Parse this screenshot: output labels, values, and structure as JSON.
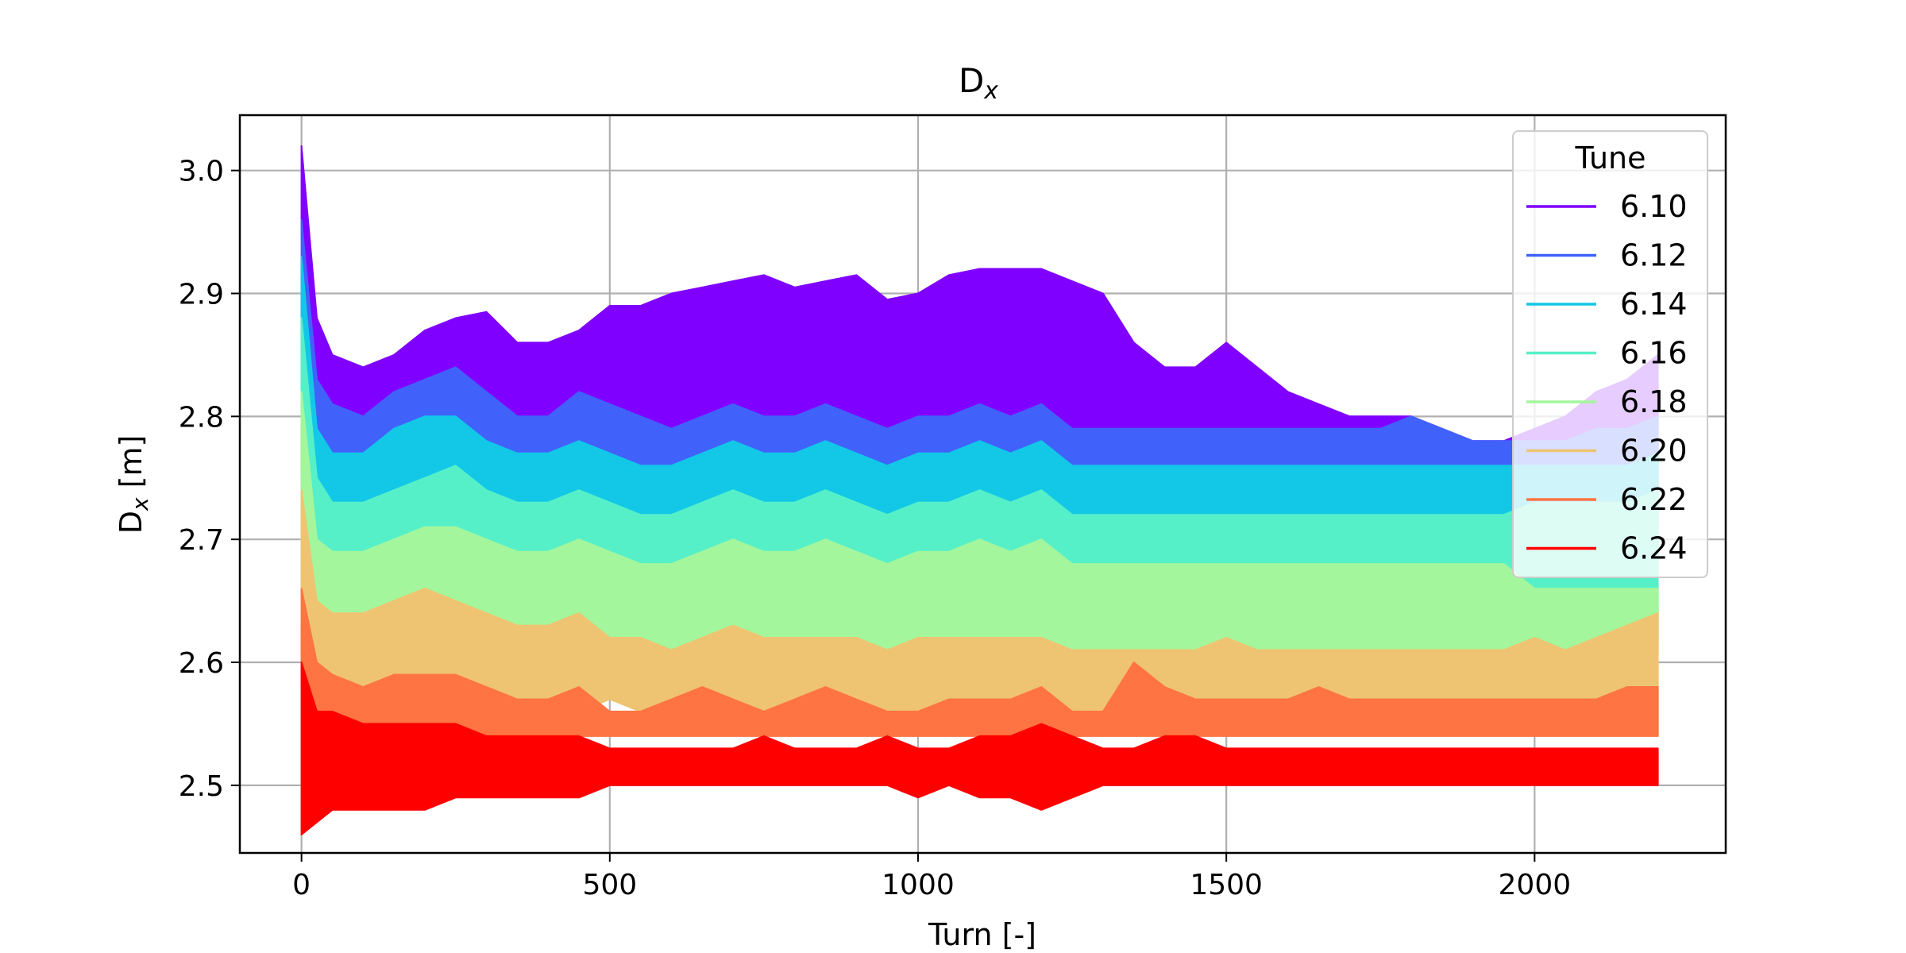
{
  "chart_data": {
    "type": "line",
    "title_main": "D",
    "title_sub": "x",
    "xlabel": "Turn [-]",
    "ylabel_main": "D",
    "ylabel_sub": "x",
    "ylabel_unit": " [m]",
    "xlim": [
      -100,
      2310
    ],
    "ylim": [
      2.445,
      3.045
    ],
    "xticks": [
      0,
      500,
      1000,
      1500,
      2000
    ],
    "xtick_labels": [
      "0",
      "500",
      "1000",
      "1500",
      "2000"
    ],
    "yticks": [
      2.5,
      2.6,
      2.7,
      2.8,
      2.9,
      3.0
    ],
    "ytick_labels": [
      "2.5",
      "2.6",
      "2.7",
      "2.8",
      "2.9",
      "3.0"
    ],
    "grid": true,
    "legend_title": "Tune",
    "legend_position": "top-right",
    "x": [
      0,
      25,
      50,
      100,
      150,
      200,
      250,
      300,
      350,
      400,
      450,
      500,
      550,
      600,
      650,
      700,
      750,
      800,
      850,
      900,
      950,
      1000,
      1050,
      1100,
      1150,
      1200,
      1250,
      1300,
      1350,
      1400,
      1450,
      1500,
      1550,
      1600,
      1650,
      1700,
      1750,
      1800,
      1850,
      1900,
      1950,
      2000,
      2050,
      2100,
      2150,
      2200
    ],
    "series": [
      {
        "name": "6.10",
        "color": "#8000ff",
        "upper": [
          3.02,
          2.88,
          2.85,
          2.84,
          2.85,
          2.87,
          2.88,
          2.885,
          2.86,
          2.86,
          2.87,
          2.89,
          2.89,
          2.9,
          2.905,
          2.91,
          2.915,
          2.905,
          2.91,
          2.915,
          2.895,
          2.9,
          2.915,
          2.92,
          2.92,
          2.92,
          2.91,
          2.9,
          2.86,
          2.84,
          2.84,
          2.86,
          2.84,
          2.82,
          2.81,
          2.8,
          2.8,
          2.8,
          2.79,
          2.78,
          2.78,
          2.79,
          2.8,
          2.82,
          2.83,
          2.85
        ],
        "lower": [
          2.95,
          2.8,
          2.79,
          2.79,
          2.79,
          2.79,
          2.8,
          2.79,
          2.78,
          2.77,
          2.77,
          2.78,
          2.78,
          2.77,
          2.77,
          2.78,
          2.77,
          2.77,
          2.76,
          2.76,
          2.77,
          2.76,
          2.76,
          2.77,
          2.77,
          2.77,
          2.76,
          2.76,
          2.75,
          2.75,
          2.75,
          2.75,
          2.75,
          2.75,
          2.75,
          2.75,
          2.74,
          2.74,
          2.74,
          2.74,
          2.74,
          2.74,
          2.74,
          2.74,
          2.74,
          2.74
        ]
      },
      {
        "name": "6.12",
        "color": "#4062fa",
        "upper": [
          2.96,
          2.83,
          2.81,
          2.8,
          2.82,
          2.83,
          2.84,
          2.82,
          2.8,
          2.8,
          2.82,
          2.81,
          2.8,
          2.79,
          2.8,
          2.81,
          2.8,
          2.8,
          2.81,
          2.8,
          2.79,
          2.8,
          2.8,
          2.81,
          2.8,
          2.81,
          2.79,
          2.79,
          2.79,
          2.79,
          2.79,
          2.79,
          2.79,
          2.79,
          2.79,
          2.79,
          2.79,
          2.8,
          2.79,
          2.78,
          2.78,
          2.78,
          2.78,
          2.79,
          2.79,
          2.8
        ],
        "lower": [
          2.85,
          2.75,
          2.74,
          2.73,
          2.74,
          2.74,
          2.74,
          2.73,
          2.73,
          2.72,
          2.72,
          2.73,
          2.72,
          2.71,
          2.71,
          2.72,
          2.72,
          2.71,
          2.71,
          2.71,
          2.71,
          2.71,
          2.71,
          2.71,
          2.71,
          2.71,
          2.71,
          2.71,
          2.71,
          2.71,
          2.71,
          2.71,
          2.71,
          2.71,
          2.71,
          2.71,
          2.71,
          2.71,
          2.71,
          2.71,
          2.71,
          2.71,
          2.71,
          2.71,
          2.71,
          2.71
        ]
      },
      {
        "name": "6.14",
        "color": "#12c8e6",
        "upper": [
          2.93,
          2.79,
          2.77,
          2.77,
          2.79,
          2.8,
          2.8,
          2.78,
          2.77,
          2.77,
          2.78,
          2.77,
          2.76,
          2.76,
          2.77,
          2.78,
          2.77,
          2.77,
          2.78,
          2.77,
          2.76,
          2.77,
          2.77,
          2.78,
          2.77,
          2.78,
          2.76,
          2.76,
          2.76,
          2.76,
          2.76,
          2.76,
          2.76,
          2.76,
          2.76,
          2.76,
          2.76,
          2.76,
          2.76,
          2.76,
          2.76,
          2.76,
          2.76,
          2.76,
          2.76,
          2.77
        ],
        "lower": [
          2.8,
          2.7,
          2.7,
          2.69,
          2.7,
          2.7,
          2.7,
          2.69,
          2.69,
          2.68,
          2.68,
          2.69,
          2.68,
          2.68,
          2.68,
          2.69,
          2.68,
          2.68,
          2.68,
          2.68,
          2.68,
          2.68,
          2.68,
          2.68,
          2.68,
          2.68,
          2.68,
          2.68,
          2.68,
          2.68,
          2.68,
          2.68,
          2.68,
          2.68,
          2.68,
          2.68,
          2.68,
          2.68,
          2.68,
          2.68,
          2.68,
          2.68,
          2.68,
          2.68,
          2.68,
          2.68
        ]
      },
      {
        "name": "6.16",
        "color": "#56f0c8",
        "upper": [
          2.88,
          2.75,
          2.73,
          2.73,
          2.74,
          2.75,
          2.76,
          2.74,
          2.73,
          2.73,
          2.74,
          2.73,
          2.72,
          2.72,
          2.73,
          2.74,
          2.73,
          2.73,
          2.74,
          2.73,
          2.72,
          2.73,
          2.73,
          2.74,
          2.73,
          2.74,
          2.72,
          2.72,
          2.72,
          2.72,
          2.72,
          2.72,
          2.72,
          2.72,
          2.72,
          2.72,
          2.72,
          2.72,
          2.72,
          2.72,
          2.72,
          2.73,
          2.73,
          2.73,
          2.73,
          2.74
        ],
        "lower": [
          2.75,
          2.66,
          2.66,
          2.65,
          2.66,
          2.66,
          2.66,
          2.65,
          2.65,
          2.65,
          2.65,
          2.65,
          2.65,
          2.65,
          2.65,
          2.65,
          2.65,
          2.65,
          2.65,
          2.65,
          2.65,
          2.65,
          2.65,
          2.65,
          2.65,
          2.65,
          2.65,
          2.65,
          2.65,
          2.65,
          2.65,
          2.65,
          2.65,
          2.65,
          2.65,
          2.65,
          2.65,
          2.65,
          2.65,
          2.65,
          2.65,
          2.62,
          2.62,
          2.62,
          2.62,
          2.62
        ]
      },
      {
        "name": "6.18",
        "color": "#a4f69c",
        "upper": [
          2.82,
          2.7,
          2.69,
          2.69,
          2.7,
          2.71,
          2.71,
          2.7,
          2.69,
          2.69,
          2.7,
          2.69,
          2.68,
          2.68,
          2.69,
          2.7,
          2.69,
          2.69,
          2.7,
          2.69,
          2.68,
          2.69,
          2.69,
          2.7,
          2.69,
          2.7,
          2.68,
          2.68,
          2.68,
          2.68,
          2.68,
          2.68,
          2.68,
          2.68,
          2.68,
          2.68,
          2.68,
          2.68,
          2.68,
          2.68,
          2.68,
          2.66,
          2.66,
          2.66,
          2.66,
          2.66
        ],
        "lower": [
          2.7,
          2.62,
          2.62,
          2.61,
          2.62,
          2.62,
          2.62,
          2.61,
          2.61,
          2.61,
          2.61,
          2.61,
          2.61,
          2.61,
          2.61,
          2.61,
          2.61,
          2.61,
          2.61,
          2.61,
          2.61,
          2.61,
          2.61,
          2.61,
          2.61,
          2.61,
          2.61,
          2.61,
          2.61,
          2.61,
          2.61,
          2.61,
          2.61,
          2.61,
          2.61,
          2.61,
          2.61,
          2.61,
          2.61,
          2.61,
          2.61,
          2.61,
          2.61,
          2.61,
          2.61,
          2.61
        ]
      },
      {
        "name": "6.20",
        "color": "#eec472",
        "upper": [
          2.74,
          2.65,
          2.64,
          2.64,
          2.65,
          2.66,
          2.65,
          2.64,
          2.63,
          2.63,
          2.64,
          2.62,
          2.62,
          2.61,
          2.62,
          2.63,
          2.62,
          2.62,
          2.62,
          2.62,
          2.61,
          2.62,
          2.62,
          2.62,
          2.62,
          2.62,
          2.61,
          2.61,
          2.61,
          2.61,
          2.61,
          2.62,
          2.61,
          2.61,
          2.61,
          2.61,
          2.61,
          2.61,
          2.61,
          2.61,
          2.61,
          2.62,
          2.61,
          2.62,
          2.63,
          2.64
        ],
        "lower": [
          2.63,
          2.58,
          2.58,
          2.57,
          2.57,
          2.58,
          2.58,
          2.57,
          2.57,
          2.56,
          2.56,
          2.57,
          2.56,
          2.56,
          2.56,
          2.57,
          2.56,
          2.56,
          2.56,
          2.56,
          2.56,
          2.56,
          2.56,
          2.56,
          2.56,
          2.56,
          2.56,
          2.56,
          2.56,
          2.56,
          2.56,
          2.56,
          2.56,
          2.56,
          2.56,
          2.56,
          2.56,
          2.56,
          2.56,
          2.56,
          2.56,
          2.56,
          2.56,
          2.56,
          2.56,
          2.54
        ]
      },
      {
        "name": "6.22",
        "color": "#ff7442",
        "upper": [
          2.66,
          2.6,
          2.59,
          2.58,
          2.59,
          2.59,
          2.59,
          2.58,
          2.57,
          2.57,
          2.58,
          2.56,
          2.56,
          2.57,
          2.58,
          2.57,
          2.56,
          2.57,
          2.58,
          2.57,
          2.56,
          2.56,
          2.57,
          2.57,
          2.57,
          2.58,
          2.56,
          2.56,
          2.6,
          2.58,
          2.57,
          2.57,
          2.57,
          2.57,
          2.58,
          2.57,
          2.57,
          2.57,
          2.57,
          2.57,
          2.57,
          2.57,
          2.57,
          2.57,
          2.58,
          2.58
        ],
        "lower": [
          2.58,
          2.54,
          2.54,
          2.54,
          2.54,
          2.54,
          2.54,
          2.54,
          2.54,
          2.54,
          2.54,
          2.54,
          2.54,
          2.54,
          2.54,
          2.54,
          2.54,
          2.54,
          2.54,
          2.54,
          2.54,
          2.54,
          2.54,
          2.54,
          2.54,
          2.54,
          2.54,
          2.54,
          2.54,
          2.54,
          2.54,
          2.54,
          2.54,
          2.54,
          2.54,
          2.54,
          2.54,
          2.54,
          2.54,
          2.54,
          2.54,
          2.54,
          2.54,
          2.54,
          2.54,
          2.54
        ]
      },
      {
        "name": "6.24",
        "color": "#ff0000",
        "upper": [
          2.6,
          2.56,
          2.56,
          2.55,
          2.55,
          2.55,
          2.55,
          2.54,
          2.54,
          2.54,
          2.54,
          2.53,
          2.53,
          2.53,
          2.53,
          2.53,
          2.54,
          2.53,
          2.53,
          2.53,
          2.54,
          2.53,
          2.53,
          2.54,
          2.54,
          2.55,
          2.54,
          2.53,
          2.53,
          2.54,
          2.54,
          2.53,
          2.53,
          2.53,
          2.53,
          2.53,
          2.53,
          2.53,
          2.53,
          2.53,
          2.53,
          2.53,
          2.53,
          2.53,
          2.53,
          2.53
        ],
        "lower": [
          2.46,
          2.47,
          2.48,
          2.48,
          2.48,
          2.48,
          2.49,
          2.49,
          2.49,
          2.49,
          2.49,
          2.5,
          2.5,
          2.5,
          2.5,
          2.5,
          2.5,
          2.5,
          2.5,
          2.5,
          2.5,
          2.49,
          2.5,
          2.49,
          2.49,
          2.48,
          2.49,
          2.5,
          2.5,
          2.5,
          2.5,
          2.5,
          2.5,
          2.5,
          2.5,
          2.5,
          2.5,
          2.5,
          2.5,
          2.5,
          2.5,
          2.5,
          2.5,
          2.5,
          2.5,
          2.5
        ]
      }
    ]
  }
}
